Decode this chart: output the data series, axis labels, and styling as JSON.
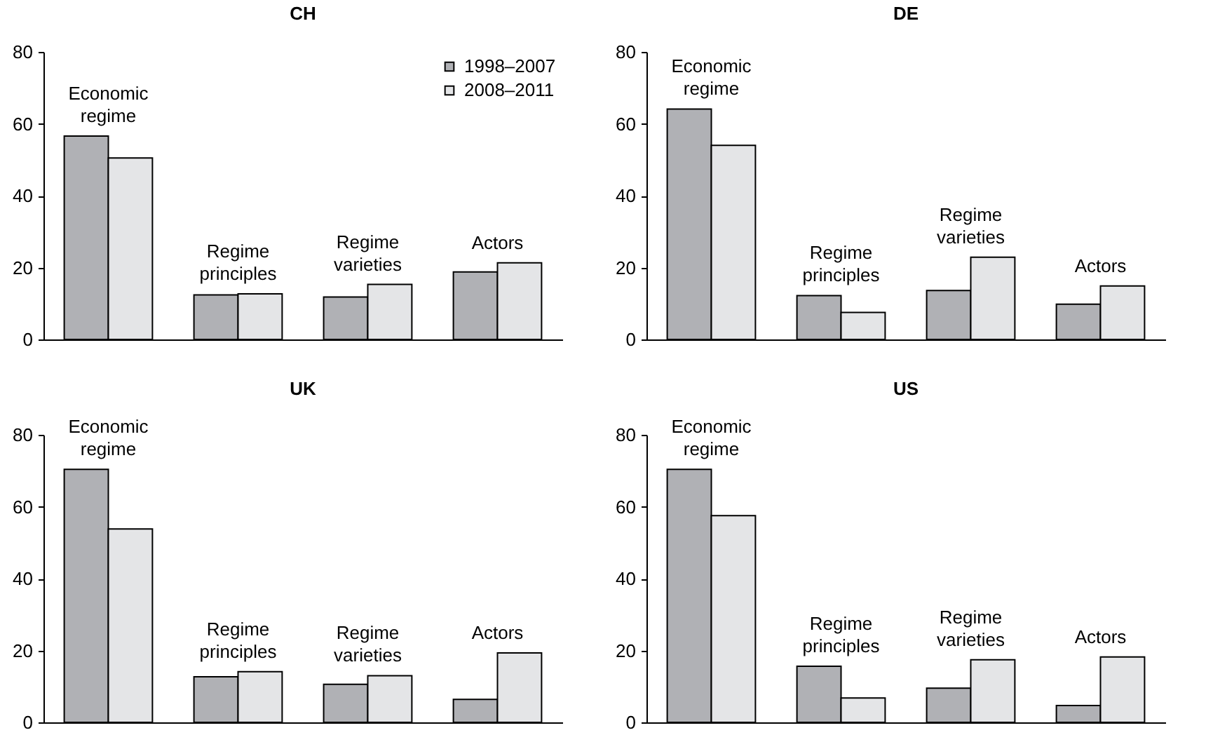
{
  "chart_data": [
    {
      "type": "bar",
      "title": "CH",
      "categories": [
        "Economic regime",
        "Regime principles",
        "Regime varieties",
        "Actors"
      ],
      "series": [
        {
          "name": "1998–2007",
          "color": "#b0b1b5",
          "values": [
            56.6,
            12.4,
            11.8,
            18.8
          ]
        },
        {
          "name": "2008–2011",
          "color": "#e4e5e7",
          "values": [
            50.5,
            12.7,
            15.3,
            21.3
          ]
        }
      ],
      "ylim": [
        0,
        80
      ],
      "yticks": [
        0,
        20,
        40,
        60,
        80
      ],
      "grid": false,
      "legend": "top right",
      "tick_labels": "y"
    },
    {
      "type": "bar",
      "title": "DE",
      "categories": [
        "Economic regime",
        "Regime principles",
        "Regime varieties",
        "Actors"
      ],
      "series": [
        {
          "color": "#b0b1b5",
          "values": [
            64.1,
            12.2,
            13.6,
            9.8
          ]
        },
        {
          "color": "#e4e5e7",
          "values": [
            54.0,
            7.5,
            22.9,
            14.9
          ]
        }
      ],
      "ylim": [
        0,
        80
      ],
      "yticks": [
        0,
        20,
        40,
        60,
        80
      ],
      "grid": false,
      "tick_labels": "y"
    },
    {
      "type": "bar",
      "title": "UK",
      "categories": [
        "Economic regime",
        "Regime principles",
        "Regime varieties",
        "Actors"
      ],
      "series": [
        {
          "color": "#b0b1b5",
          "values": [
            70.4,
            12.7,
            10.6,
            6.4
          ]
        },
        {
          "color": "#e4e5e7",
          "values": [
            53.8,
            14.1,
            13.0,
            19.3
          ]
        }
      ],
      "ylim": [
        0,
        80
      ],
      "yticks": [
        0,
        20,
        40,
        60,
        80
      ],
      "grid": false,
      "tick_labels": "y"
    },
    {
      "type": "bar",
      "title": "US",
      "categories": [
        "Economic regime",
        "Regime principles",
        "Regime varieties",
        "Actors"
      ],
      "series": [
        {
          "color": "#b0b1b5",
          "values": [
            70.4,
            15.6,
            9.5,
            4.7
          ]
        },
        {
          "color": "#e4e5e7",
          "values": [
            57.5,
            6.8,
            17.4,
            18.2
          ]
        }
      ],
      "ylim": [
        0,
        80
      ],
      "yticks": [
        0,
        20,
        40,
        60,
        80
      ],
      "grid": false,
      "tick_labels": "y"
    }
  ]
}
